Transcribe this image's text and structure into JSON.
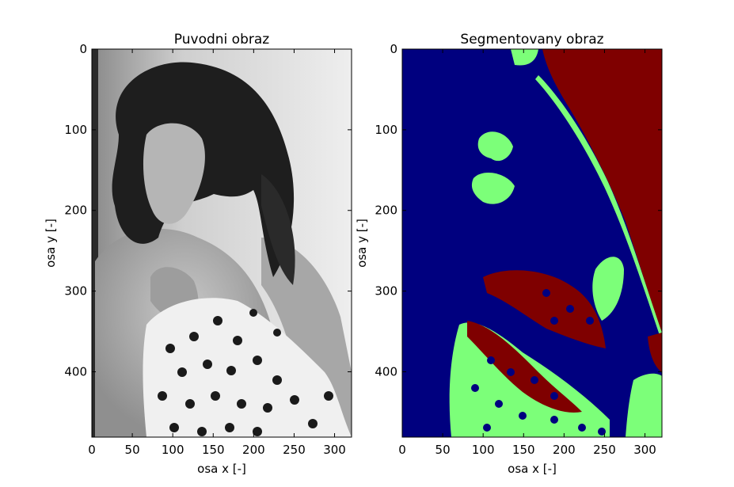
{
  "chart_data": [
    {
      "type": "image",
      "title": "Puvodni obraz",
      "xlabel": "osa x [-]",
      "ylabel": "osa y [-]",
      "xlim": [
        0,
        321
      ],
      "ylim": [
        481,
        0
      ],
      "xticks": [
        0,
        50,
        100,
        150,
        200,
        250,
        300
      ],
      "yticks": [
        0,
        100,
        200,
        300,
        400
      ],
      "colormap": "gray"
    },
    {
      "type": "image",
      "title": "Segmentovany obraz",
      "xlabel": "osa x [-]",
      "ylabel": "osa y [-]",
      "xlim": [
        0,
        321
      ],
      "ylim": [
        481,
        0
      ],
      "xticks": [
        0,
        50,
        100,
        150,
        200,
        250,
        300
      ],
      "yticks": [
        0,
        100,
        200,
        300,
        400
      ],
      "colormap": "jet",
      "segment_colors": [
        "#00007f",
        "#7cff79",
        "#7f0000"
      ]
    }
  ]
}
